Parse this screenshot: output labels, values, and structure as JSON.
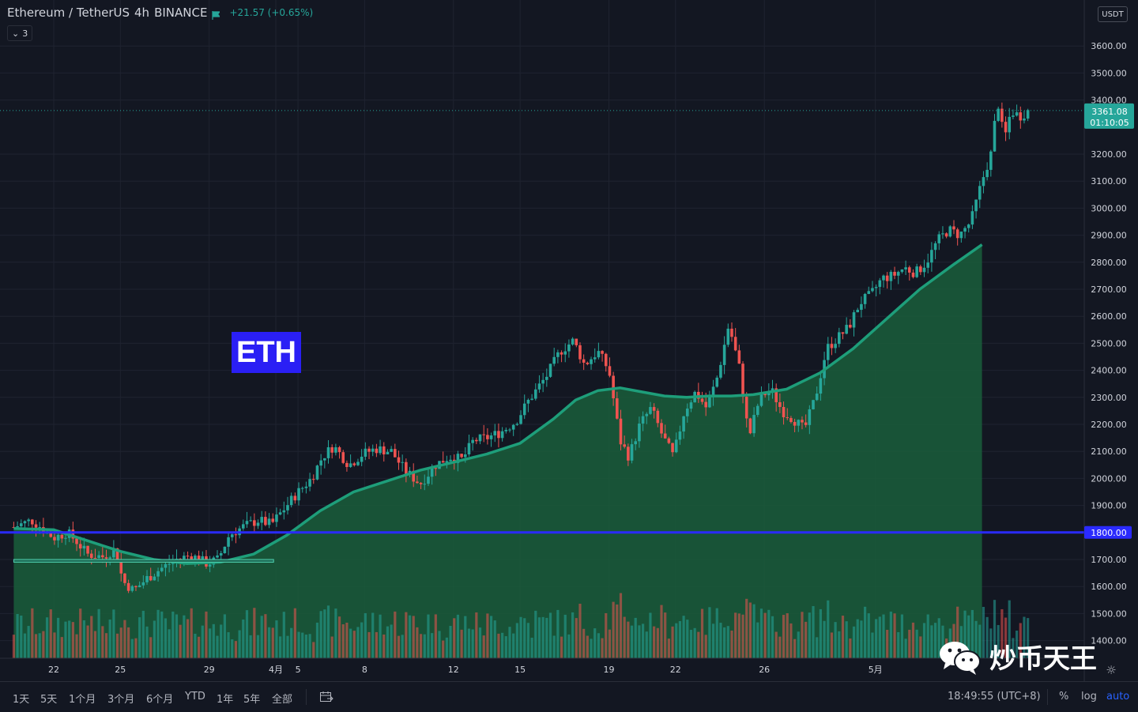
{
  "legend": {
    "symbol": "Ethereum / TetherUS",
    "interval": "4h",
    "exchange": "BINANCE",
    "change": "+21.57 (+0.65%)",
    "collapse_count": "3"
  },
  "price_axis": {
    "currency": "USDT",
    "ticks": [
      "3600.00",
      "3500.00",
      "3400.00",
      "3200.00",
      "3100.00",
      "3000.00",
      "2900.00",
      "2800.00",
      "2700.00",
      "2600.00",
      "2500.00",
      "2400.00",
      "2300.00",
      "2200.00",
      "2100.00",
      "2000.00",
      "1900.00",
      "1700.00",
      "1600.00",
      "1500.00",
      "1400.00"
    ],
    "last_price": "3361.08",
    "countdown": "01:10:05",
    "level_label": "1800.00"
  },
  "time_axis": {
    "ticks": [
      {
        "label": "22",
        "day": 22
      },
      {
        "label": "25",
        "day": 25
      },
      {
        "label": "29",
        "day": 29
      },
      {
        "label": "4月",
        "day": 32
      },
      {
        "label": "5",
        "day": 33
      },
      {
        "label": "8",
        "day": 36
      },
      {
        "label": "12",
        "day": 40
      },
      {
        "label": "15",
        "day": 43
      },
      {
        "label": "19",
        "day": 47
      },
      {
        "label": "22",
        "day": 50
      },
      {
        "label": "26",
        "day": 54
      },
      {
        "label": "5月",
        "day": 59
      }
    ]
  },
  "annotation": {
    "text": "ETH"
  },
  "bottom_bar": {
    "ranges": [
      "1天",
      "5天",
      "1个月",
      "3个月",
      "6个月",
      "YTD",
      "1年",
      "5年",
      "全部"
    ],
    "time": "18:49:55 (UTC+8)",
    "percent": "%",
    "log": "log",
    "auto": "auto"
  },
  "watermark": {
    "text": "炒币天王"
  },
  "colors": {
    "up": "#26a69a",
    "down": "#ef5350",
    "ma": "#1e9e7a",
    "level": "#2a2aff",
    "annotation": "#2a1ff5"
  },
  "chart_data": {
    "type": "candlestick",
    "title": "Ethereum / TetherUS 4h BINANCE",
    "x_unit": "day (21 = Mar 21, 2021; 32 = Apr 1)",
    "ylim": [
      1330,
      3680
    ],
    "horizontal_level": 1800,
    "box_level": {
      "from": 1690,
      "to": 1700,
      "x_start": 20.2,
      "x_end": 31.9
    },
    "close_path": [
      [
        20.2,
        1820
      ],
      [
        21,
        1845
      ],
      [
        21.5,
        1815
      ],
      [
        22,
        1780
      ],
      [
        22.6,
        1800
      ],
      [
        23,
        1770
      ],
      [
        23.5,
        1720
      ],
      [
        24.2,
        1710
      ],
      [
        24.8,
        1740
      ],
      [
        25.1,
        1620
      ],
      [
        25.6,
        1585
      ],
      [
        26.2,
        1630
      ],
      [
        26.8,
        1665
      ],
      [
        27.5,
        1700
      ],
      [
        28.2,
        1715
      ],
      [
        28.9,
        1685
      ],
      [
        29.4,
        1700
      ],
      [
        29.9,
        1790
      ],
      [
        30.5,
        1820
      ],
      [
        31.2,
        1845
      ],
      [
        31.8,
        1830
      ],
      [
        32.3,
        1880
      ],
      [
        32.9,
        1940
      ],
      [
        33.6,
        2000
      ],
      [
        34.1,
        2080
      ],
      [
        34.6,
        2120
      ],
      [
        35.3,
        2050
      ],
      [
        35.9,
        2090
      ],
      [
        36.5,
        2110
      ],
      [
        37.2,
        2100
      ],
      [
        37.8,
        2030
      ],
      [
        38.5,
        1980
      ],
      [
        39.2,
        2050
      ],
      [
        39.8,
        2080
      ],
      [
        40.4,
        2070
      ],
      [
        40.9,
        2140
      ],
      [
        41.5,
        2150
      ],
      [
        42.1,
        2170
      ],
      [
        42.8,
        2210
      ],
      [
        43.4,
        2290
      ],
      [
        44.2,
        2380
      ],
      [
        44.8,
        2470
      ],
      [
        45.4,
        2510
      ],
      [
        45.9,
        2420
      ],
      [
        46.5,
        2470
      ],
      [
        47.0,
        2400
      ],
      [
        47.5,
        2140
      ],
      [
        47.9,
        2080
      ],
      [
        48.4,
        2200
      ],
      [
        48.9,
        2260
      ],
      [
        49.4,
        2160
      ],
      [
        49.9,
        2080
      ],
      [
        50.4,
        2250
      ],
      [
        50.9,
        2320
      ],
      [
        51.4,
        2260
      ],
      [
        51.9,
        2380
      ],
      [
        52.4,
        2570
      ],
      [
        52.9,
        2400
      ],
      [
        53.3,
        2150
      ],
      [
        53.8,
        2300
      ],
      [
        54.3,
        2330
      ],
      [
        54.8,
        2250
      ],
      [
        55.3,
        2220
      ],
      [
        55.8,
        2180
      ],
      [
        56.3,
        2300
      ],
      [
        56.8,
        2480
      ],
      [
        57.3,
        2520
      ],
      [
        57.8,
        2560
      ],
      [
        58.3,
        2650
      ],
      [
        58.8,
        2680
      ],
      [
        59.3,
        2740
      ],
      [
        59.8,
        2750
      ],
      [
        60.3,
        2780
      ],
      [
        60.8,
        2760
      ],
      [
        61.3,
        2800
      ],
      [
        61.8,
        2880
      ],
      [
        62.3,
        2920
      ],
      [
        62.8,
        2900
      ],
      [
        63.3,
        2950
      ],
      [
        63.8,
        3100
      ],
      [
        64.2,
        3200
      ],
      [
        64.5,
        3400
      ],
      [
        64.8,
        3250
      ],
      [
        65.1,
        3360
      ],
      [
        65.5,
        3340
      ],
      [
        65.9,
        3361
      ]
    ],
    "moving_average": [
      [
        20.2,
        1815
      ],
      [
        22,
        1810
      ],
      [
        23.5,
        1770
      ],
      [
        25,
        1730
      ],
      [
        26.5,
        1700
      ],
      [
        28,
        1685
      ],
      [
        29.5,
        1690
      ],
      [
        31,
        1720
      ],
      [
        32.5,
        1790
      ],
      [
        34,
        1880
      ],
      [
        35.5,
        1950
      ],
      [
        37,
        1990
      ],
      [
        38.5,
        2030
      ],
      [
        40,
        2060
      ],
      [
        41.5,
        2090
      ],
      [
        43,
        2130
      ],
      [
        44.5,
        2220
      ],
      [
        45.5,
        2290
      ],
      [
        46.5,
        2325
      ],
      [
        47.5,
        2335
      ],
      [
        48.5,
        2320
      ],
      [
        49.5,
        2305
      ],
      [
        50.5,
        2300
      ],
      [
        51.5,
        2305
      ],
      [
        52.5,
        2305
      ],
      [
        53.5,
        2310
      ],
      [
        55,
        2330
      ],
      [
        56.5,
        2390
      ],
      [
        58,
        2480
      ],
      [
        59.5,
        2590
      ],
      [
        61,
        2700
      ],
      [
        62.5,
        2790
      ],
      [
        63.8,
        2865
      ]
    ],
    "volume_note": "volume bars along bottom, colored by candle direction"
  }
}
